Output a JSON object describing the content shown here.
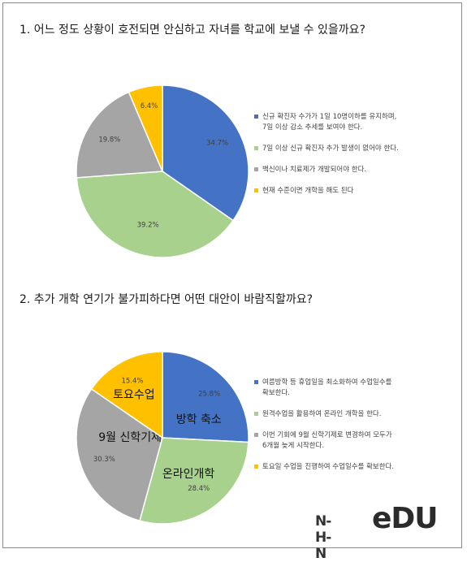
{
  "chart_data": [
    {
      "type": "pie",
      "title": "1. 어느 정도 상황이 호전되면 안심하고 자녀를 학교에 보낼 수 있을까요?",
      "series": [
        {
          "name": "신규 확진자 수가가 1일 10명이하를 유지하며,\n7일 이상 감소 추세를 보여야 한다.",
          "value": 34.7,
          "label": "34.7%",
          "color": "#4472C4"
        },
        {
          "name": "7일 이상 신규 확진자 추가 발생이 없어야 한다.",
          "value": 39.2,
          "label": "39.2%",
          "color": "#A9D18E"
        },
        {
          "name": "백신이나 치료제가 개발되어야 한다.",
          "value": 19.8,
          "label": "19.8%",
          "color": "#A5A5A5"
        },
        {
          "name": "현재 수준이면 개학을 해도 된다",
          "value": 6.4,
          "label": "6.4%",
          "color": "#FFC000"
        }
      ],
      "legend": "right"
    },
    {
      "type": "pie",
      "title": "2. 추가 개학 연기가 불가피하다면 어떤 대안이 바람직할까요?",
      "series": [
        {
          "name": "여름방학 등 휴업일을 최소화하여 수업일수를\n확보한다.",
          "value": 25.8,
          "label": "25.8%",
          "callout": "방학 축소",
          "color": "#4472C4"
        },
        {
          "name": "원격수업을 활용하여 온라인 개학을 한다.",
          "value": 28.4,
          "label": "28.4%",
          "callout": "온라인개학",
          "color": "#A9D18E"
        },
        {
          "name": "이번 기회에 9월 신학기제로 변경하여 모두가\n6개월 늦게 시작한다.",
          "value": 30.3,
          "label": "30.3%",
          "callout": "9월 신학기제",
          "color": "#A5A5A5"
        },
        {
          "name": "토요일 수업을 진행하여 수업일수를 확보한다.",
          "value": 15.4,
          "label": "15.4%",
          "callout": "토요수업",
          "color": "#FFC000"
        }
      ],
      "legend": "right"
    }
  ],
  "logo": {
    "nhn": "N-H-N",
    "edu": "eDU"
  }
}
